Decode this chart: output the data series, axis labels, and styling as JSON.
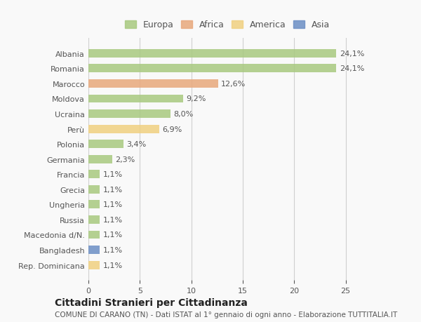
{
  "categories": [
    "Albania",
    "Romania",
    "Marocco",
    "Moldova",
    "Ucraina",
    "Perù",
    "Polonia",
    "Germania",
    "Francia",
    "Grecia",
    "Ungheria",
    "Russia",
    "Macedonia d/N.",
    "Bangladesh",
    "Rep. Dominicana"
  ],
  "values": [
    24.1,
    24.1,
    12.6,
    9.2,
    8.0,
    6.9,
    3.4,
    2.3,
    1.1,
    1.1,
    1.1,
    1.1,
    1.1,
    1.1,
    1.1
  ],
  "bar_colors": [
    "#a8c97f",
    "#a8c97f",
    "#e8a87c",
    "#a8c97f",
    "#a8c97f",
    "#f0d080",
    "#a8c97f",
    "#a8c97f",
    "#a8c97f",
    "#a8c97f",
    "#a8c97f",
    "#a8c97f",
    "#a8c97f",
    "#6b8ec4",
    "#f0d080"
  ],
  "labels": [
    "24,1%",
    "24,1%",
    "12,6%",
    "9,2%",
    "8,0%",
    "6,9%",
    "3,4%",
    "2,3%",
    "1,1%",
    "1,1%",
    "1,1%",
    "1,1%",
    "1,1%",
    "1,1%",
    "1,1%"
  ],
  "legend": [
    {
      "label": "Europa",
      "color": "#a8c97f"
    },
    {
      "label": "Africa",
      "color": "#e8a87c"
    },
    {
      "label": "America",
      "color": "#f0d080"
    },
    {
      "label": "Asia",
      "color": "#6b8ec4"
    }
  ],
  "xlim": [
    0,
    27
  ],
  "xticks": [
    0,
    5,
    10,
    15,
    20,
    25
  ],
  "title": "Cittadini Stranieri per Cittadinanza",
  "subtitle": "COMUNE DI CARANO (TN) - Dati ISTAT al 1° gennaio di ogni anno - Elaborazione TUTTITALIA.IT",
  "bg_color": "#f9f9f9",
  "grid_color": "#d0d0d0",
  "text_color": "#555555",
  "bar_height": 0.55,
  "label_fontsize": 8,
  "tick_fontsize": 8,
  "title_fontsize": 10,
  "subtitle_fontsize": 7.5
}
